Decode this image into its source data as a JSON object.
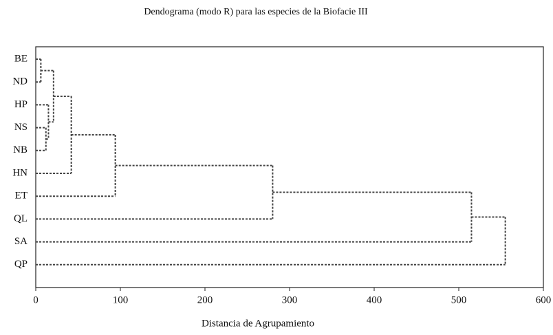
{
  "chart_data": {
    "type": "dendrogram",
    "title": "Dendograma (modo R) para las especies de la Biofacie III",
    "xlabel": "Distancia de Agrupamiento",
    "leaves": [
      "BE",
      "ND",
      "HP",
      "NS",
      "NB",
      "HN",
      "ET",
      "QL",
      "SA",
      "QP"
    ],
    "merges": [
      {
        "left": 0,
        "right": 1,
        "height": 6
      },
      {
        "left": 3,
        "right": 4,
        "height": 12
      },
      {
        "left": 2,
        "right": 11,
        "height": 15
      },
      {
        "left": 10,
        "right": 12,
        "height": 21
      },
      {
        "left": 13,
        "right": 5,
        "height": 42
      },
      {
        "left": 14,
        "right": 6,
        "height": 94
      },
      {
        "left": 15,
        "right": 7,
        "height": 280
      },
      {
        "left": 16,
        "right": 8,
        "height": 515
      },
      {
        "left": 17,
        "right": 9,
        "height": 555
      }
    ],
    "color": "#444444",
    "xlim": [
      0,
      600
    ],
    "xticks": [
      0,
      100,
      200,
      300,
      400,
      500,
      600
    ]
  }
}
